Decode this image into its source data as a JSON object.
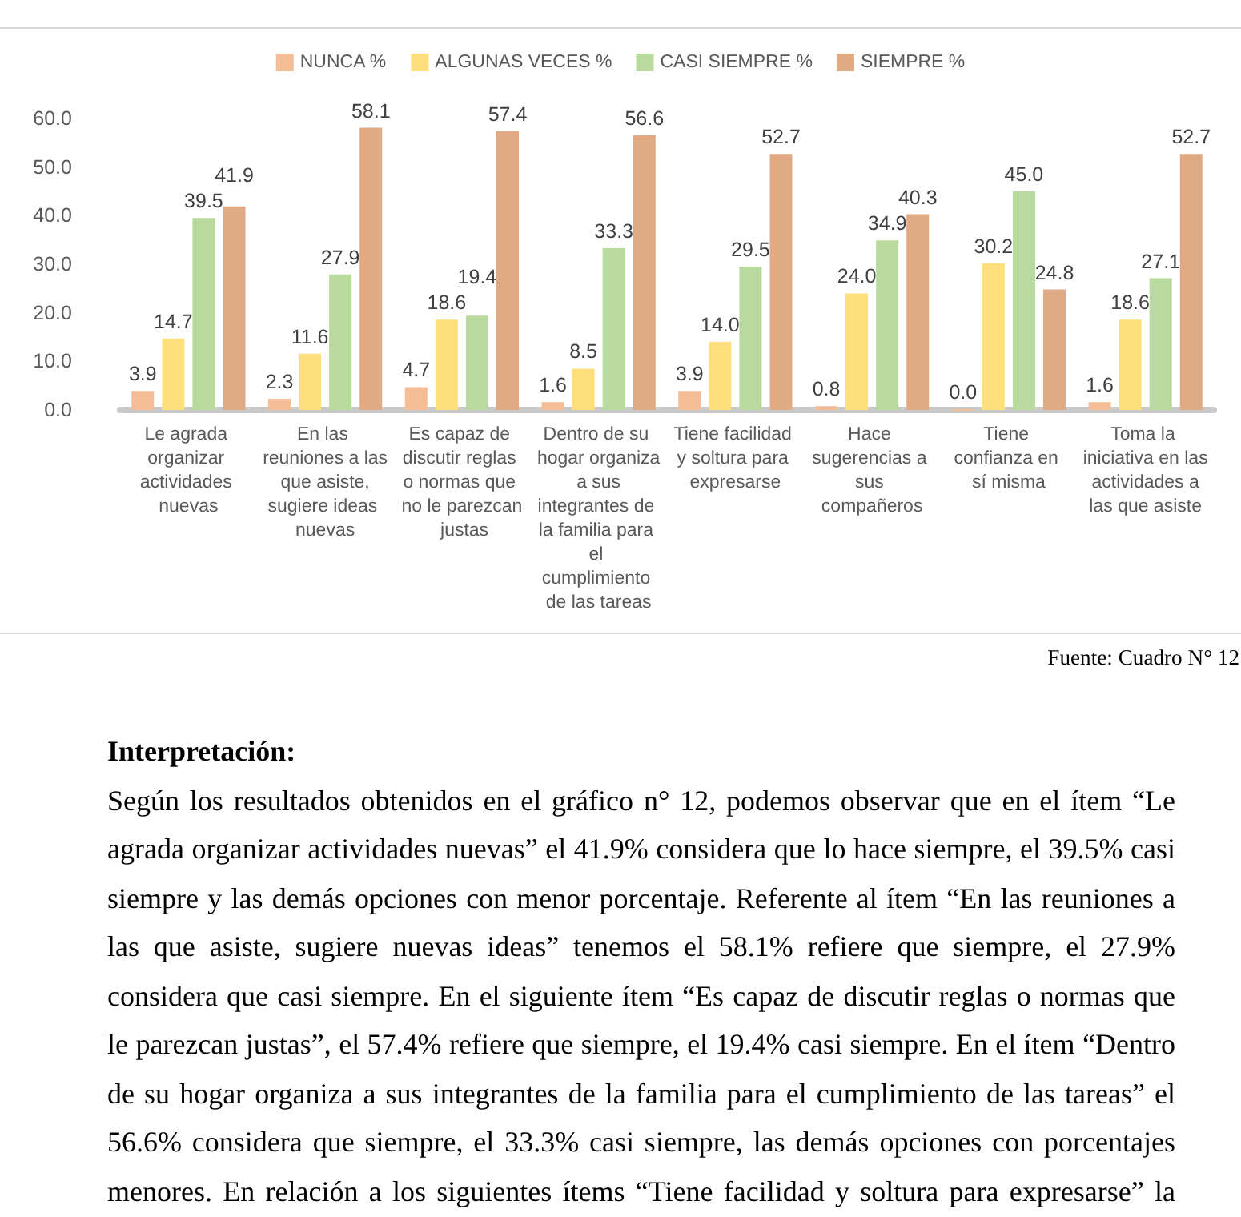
{
  "chart_data": {
    "type": "bar",
    "categories": [
      "Le agrada organizar actividades nuevas",
      "En las reuniones a las que asiste, sugiere ideas nuevas",
      "Es capaz de discutir reglas o normas que no le parezcan justas",
      "Dentro de su hogar organiza a sus integrantes de la familia para el cumplimiento de las tareas",
      "Tiene facilidad y soltura para expresarse",
      "Hace sugerencias a sus compañeros",
      "Tiene confianza en sí misma",
      "Toma la iniciativa en las actividades a las que asiste"
    ],
    "series": [
      {
        "name": "NUNCA %",
        "color": "#f4bd96",
        "values": [
          3.9,
          2.3,
          4.7,
          1.6,
          3.9,
          0.8,
          0.0,
          1.6
        ],
        "value_labels": [
          "3.9",
          "2.3",
          "4.7",
          "1.6",
          "3.9",
          "0.8",
          "0.0",
          "1.6"
        ]
      },
      {
        "name": "ALGUNAS VECES %",
        "color": "#fde07c",
        "values": [
          14.7,
          11.6,
          18.6,
          8.5,
          14.0,
          24.0,
          30.2,
          18.6
        ],
        "value_labels": [
          "14.7",
          "11.6",
          "18.6",
          "8.5",
          "14.0",
          "24.0",
          "30.2",
          "18.6"
        ]
      },
      {
        "name": "CASI SIEMPRE %",
        "color": "#b8da9c",
        "values": [
          39.5,
          27.9,
          19.4,
          33.3,
          29.5,
          34.9,
          45.0,
          27.1
        ],
        "value_labels": [
          "39.5",
          "27.9",
          "19.4",
          "33.3",
          "29.5",
          "34.9",
          "45.0",
          "27.1"
        ]
      },
      {
        "name": "SIEMPRE %",
        "color": "#e0aa85",
        "values": [
          41.9,
          58.1,
          57.4,
          56.6,
          52.7,
          40.3,
          24.8,
          52.7
        ],
        "value_labels": [
          "41.9",
          "58.1",
          "57.4",
          "56.6",
          "52.7",
          "40.3",
          "24.8",
          "52.7"
        ]
      }
    ],
    "ylim": [
      0,
      60
    ],
    "yticks": [
      {
        "value": 0,
        "label": "0.0"
      },
      {
        "value": 10,
        "label": "10.0"
      },
      {
        "value": 20,
        "label": "20.0"
      },
      {
        "value": 30,
        "label": "30.0"
      },
      {
        "value": 40,
        "label": "40.0"
      },
      {
        "value": 50,
        "label": "50.0"
      },
      {
        "value": 60,
        "label": "60.0"
      }
    ],
    "grid": false,
    "legend": "top",
    "annotations": [
      "Fuente: Cuadro N° 12",
      "Interpretación:",
      "Según los resultados obtenidos en el gráfico n° 12, podemos observar que en el ítem “Le agrada organizar actividades nuevas” el 41.9% considera que lo hace siempre, el 39.5% casi siempre y las demás opciones con menor porcentaje. Referente al ítem “En las reuniones a las que asiste, sugiere nuevas ideas” tenemos el 58.1% refiere que siempre, el 27.9% considera que casi siempre. En el siguiente ítem “Es capaz de discutir reglas o normas que le parezcan justas”, el 57.4% refiere que siempre, el 19.4% casi siempre. En el ítem “Dentro de su hogar organiza a sus integrantes de la familia para el cumplimiento de las tareas” el 56.6% considera que siempre, el 33.3% casi siempre, las demás opciones con porcentajes menores. En relación a los siguientes ítems “Tiene facilidad y soltura para expresarse” la"
    ]
  }
}
